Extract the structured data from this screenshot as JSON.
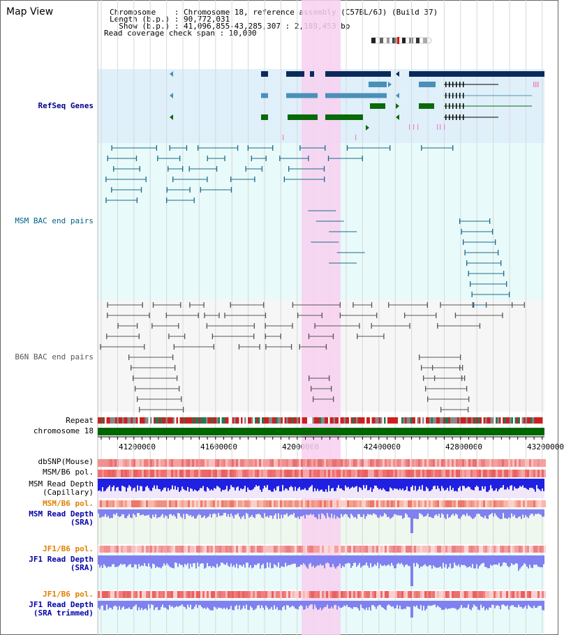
{
  "view": {
    "title": "Map View",
    "chromosome_line": "Chromosome    : Chromosome 18, reference assembly (C57BL/6J) (Build 37)",
    "length_line": "Length (b.p.) : 90,772,031",
    "show_line": "  Show (b.p.) : 41,096,855-43,285,307 : 2,188,453 bp",
    "read_line": "Read coverage check span : 10,000"
  },
  "tracks": {
    "refseq": "RefSeq Genes",
    "msm_bac": "MSM BAC end pairs",
    "b6n_bac": "B6N BAC end pairs",
    "repeat": "Repeat",
    "chromosome": "chromosome 18",
    "dbsnp": "dbSNP(Mouse)",
    "msm_b6_pol_1": "MSM/B6 pol.",
    "msm_read_depth_cap_1": "MSM Read Depth",
    "msm_read_depth_cap_2": "(Capillary)",
    "msm_b6_pol_2": "MSM/B6 pol.",
    "msm_read_depth_sra_1": "MSM Read Depth",
    "msm_read_depth_sra_2": "(SRA)",
    "jf1_b6_pol_1": "JF1/B6 pol.",
    "jf1_read_depth_sra_1": "JF1 Read Depth",
    "jf1_read_depth_sra_2": "(SRA)",
    "jf1_b6_pol_2": "JF1/B6 pol.",
    "jf1_read_depth_trim_1": "JF1 Read Depth",
    "jf1_read_depth_trim_2": "(SRA trimmed)"
  },
  "axis": {
    "ticks": [
      "41200000",
      "41600000",
      "42000000",
      "42400000",
      "42800000",
      "43200000"
    ]
  },
  "colors": {
    "highlight": "#f8d0f0",
    "refseq_bg": "#dff0fa",
    "msm_bg": "#e8fafa",
    "b6n_bg": "#f6f6f6",
    "gene_navy": "#0a2a5a",
    "gene_steel": "#4a90b8",
    "gene_green": "#0a6a0a",
    "chrom_green": "#006600",
    "depth_blue": "#2020e0",
    "depth_lav": "#8080f0"
  }
}
